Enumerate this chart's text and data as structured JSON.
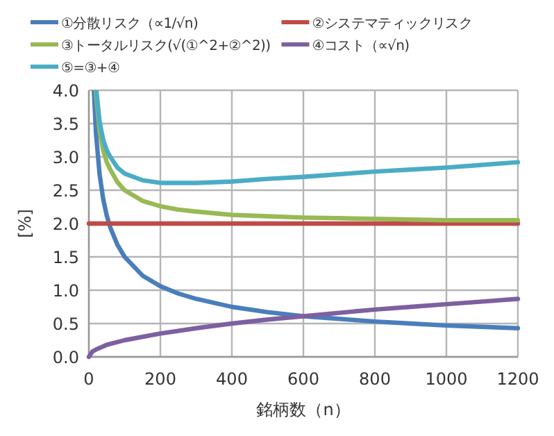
{
  "chart_data": {
    "type": "line",
    "xlabel": "銘柄数（n）",
    "ylabel": "[%]",
    "xlim": [
      0,
      1200
    ],
    "ylim": [
      0,
      4
    ],
    "xticks": [
      0,
      200,
      400,
      600,
      800,
      1000,
      1200
    ],
    "yticks": [
      {
        "value": 0,
        "label": "0.0"
      },
      {
        "value": 0.5,
        "label": "0.5"
      },
      {
        "value": 1,
        "label": "1.0"
      },
      {
        "value": 1.5,
        "label": "1.5"
      },
      {
        "value": 2,
        "label": "2.0"
      },
      {
        "value": 2.5,
        "label": "2.5"
      },
      {
        "value": 3,
        "label": "3.0"
      },
      {
        "value": 3.5,
        "label": "3.5"
      },
      {
        "value": 4,
        "label": "4.0"
      }
    ],
    "grid": true,
    "legend": "top",
    "marker": "none",
    "line_style": "solid",
    "series": [
      {
        "name": "①分散リスク（∝1/√n)",
        "color": "#4a7ebb",
        "x": [
          14,
          20,
          30,
          40,
          50,
          60,
          80,
          100,
          150,
          200,
          250,
          300,
          400,
          500,
          600,
          700,
          800,
          900,
          1000,
          1100,
          1200
        ],
        "values": [
          4.0,
          3.35,
          2.74,
          2.37,
          2.12,
          1.94,
          1.68,
          1.5,
          1.22,
          1.06,
          0.95,
          0.87,
          0.75,
          0.67,
          0.61,
          0.57,
          0.53,
          0.5,
          0.47,
          0.45,
          0.43
        ]
      },
      {
        "name": "②システマティックリスク",
        "color": "#be4b48",
        "x": [
          0,
          1200
        ],
        "values": [
          2.0,
          2.0
        ]
      },
      {
        "name": "③トータルリスク(√(①^2+②^2))",
        "color": "#98b954",
        "x": [
          19,
          30,
          40,
          50,
          60,
          80,
          100,
          150,
          200,
          250,
          300,
          400,
          500,
          600,
          700,
          800,
          900,
          1000,
          1100,
          1200
        ],
        "values": [
          4.0,
          3.39,
          3.1,
          2.92,
          2.81,
          2.62,
          2.5,
          2.34,
          2.26,
          2.21,
          2.18,
          2.13,
          2.11,
          2.09,
          2.08,
          2.07,
          2.06,
          2.05,
          2.05,
          2.05
        ]
      },
      {
        "name": "④コスト（∝√n)",
        "color": "#7d60a0",
        "x": [
          0,
          10,
          20,
          50,
          100,
          200,
          300,
          400,
          500,
          600,
          700,
          800,
          900,
          1000,
          1100,
          1200
        ],
        "values": [
          0,
          0.08,
          0.11,
          0.18,
          0.25,
          0.35,
          0.43,
          0.5,
          0.56,
          0.61,
          0.66,
          0.71,
          0.75,
          0.79,
          0.83,
          0.87
        ]
      },
      {
        "name": "⑤=③+④",
        "color": "#4bacc6",
        "x": [
          21,
          30,
          40,
          50,
          60,
          80,
          100,
          150,
          200,
          250,
          300,
          400,
          500,
          600,
          700,
          800,
          900,
          1000,
          1100,
          1200
        ],
        "values": [
          4.0,
          3.53,
          3.26,
          3.1,
          3.0,
          2.84,
          2.75,
          2.65,
          2.61,
          2.61,
          2.61,
          2.63,
          2.67,
          2.7,
          2.74,
          2.78,
          2.81,
          2.84,
          2.88,
          2.92
        ]
      }
    ]
  }
}
